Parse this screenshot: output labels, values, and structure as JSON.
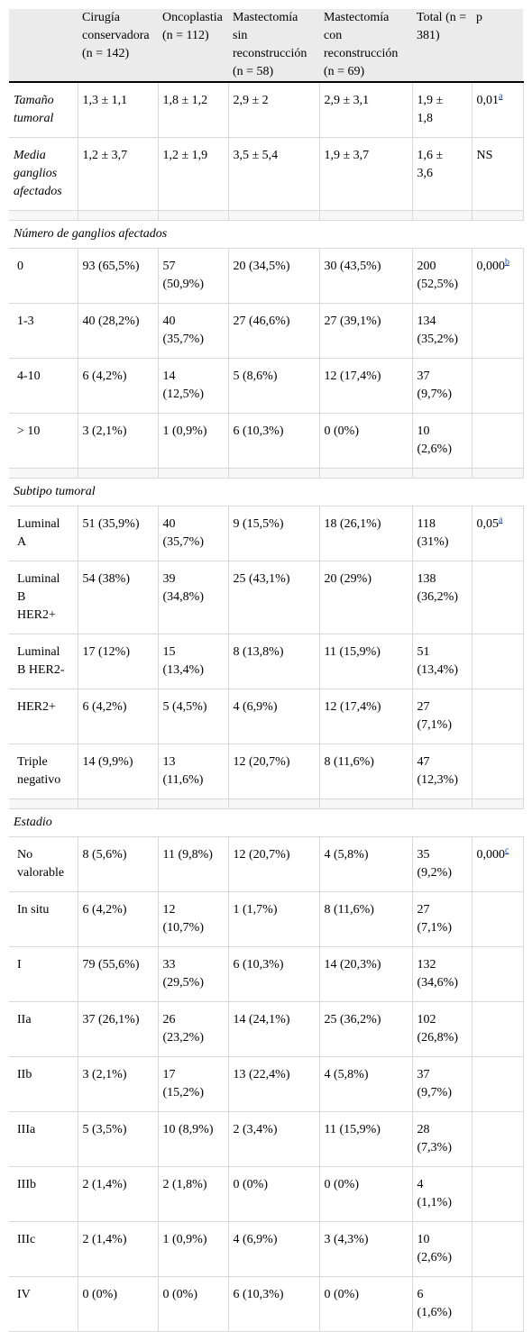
{
  "header": {
    "col0": "",
    "col1": [
      "Cirugía",
      "conservadora",
      "(n = 142)"
    ],
    "col2": [
      "Oncoplastia",
      "(n = 112)"
    ],
    "col3": [
      "Mastectomía",
      "sin",
      "reconstrucción",
      "(n = 58)"
    ],
    "col4": [
      "Mastectomía",
      "con",
      "reconstrucción",
      "(n = 69)"
    ],
    "col5": [
      "Total (n =",
      "381)"
    ],
    "col6": [
      "p"
    ]
  },
  "top_rows": [
    {
      "label": [
        "Tamaño",
        "tumoral"
      ],
      "c1": "1,3 ± 1,1",
      "c2": "1,8 ± 1,2",
      "c3": "2,9 ± 2",
      "c4": "2,9 ± 3,1",
      "c5": [
        "1,9 ±",
        "1,8"
      ],
      "p": "0,01",
      "p_note": "a"
    },
    {
      "label": [
        "Media",
        "ganglios",
        "afectados"
      ],
      "c1": "1,2 ± 3,7",
      "c2": "1,2 ± 1,9",
      "c3": "3,5 ± 5,4",
      "c4": "1,9 ± 3,7",
      "c5": [
        "1,6 ±",
        "3,6"
      ],
      "p": "NS",
      "p_note": ""
    }
  ],
  "sections": [
    {
      "title": "Número de ganglios afectados",
      "rows": [
        {
          "label": [
            "0"
          ],
          "c1": "93 (65,5%)",
          "c2": [
            "57",
            "(50,9%)"
          ],
          "c3": "20 (34,5%)",
          "c4": "30 (43,5%)",
          "c5": [
            "200",
            "(52,5%)"
          ],
          "p": "0,000",
          "p_note": "b"
        },
        {
          "label": [
            "1-3"
          ],
          "c1": "40 (28,2%)",
          "c2": [
            "40",
            "(35,7%)"
          ],
          "c3": "27 (46,6%)",
          "c4": "27 (39,1%)",
          "c5": [
            "134",
            "(35,2%)"
          ],
          "p": "",
          "p_note": ""
        },
        {
          "label": [
            "4-10"
          ],
          "c1": "6 (4,2%)",
          "c2": [
            "14",
            "(12,5%)"
          ],
          "c3": "5 (8,6%)",
          "c4": "12 (17,4%)",
          "c5": [
            "37",
            "(9,7%)"
          ],
          "p": "",
          "p_note": ""
        },
        {
          "label": [
            "> 10"
          ],
          "c1": "3 (2,1%)",
          "c2": [
            "1 (0,9%)"
          ],
          "c3": "6 (10,3%)",
          "c4": "0 (0%)",
          "c5": [
            "10",
            "(2,6%)"
          ],
          "p": "",
          "p_note": ""
        }
      ]
    },
    {
      "title": "Subtipo tumoral",
      "rows": [
        {
          "label": [
            "Luminal",
            "A"
          ],
          "c1": "51 (35,9%)",
          "c2": [
            "40",
            "(35,7%)"
          ],
          "c3": "9 (15,5%)",
          "c4": "18 (26,1%)",
          "c5": [
            "118",
            "(31%)"
          ],
          "p": "0,05",
          "p_note": "a"
        },
        {
          "label": [
            "Luminal",
            "B",
            "HER2+"
          ],
          "c1": "54 (38%)",
          "c2": [
            "39",
            "(34,8%)"
          ],
          "c3": "25 (43,1%)",
          "c4": "20 (29%)",
          "c5": [
            "138",
            "(36,2%)"
          ],
          "p": "",
          "p_note": ""
        },
        {
          "label": [
            "Luminal",
            "B HER2-"
          ],
          "c1": "17 (12%)",
          "c2": [
            "15",
            "(13,4%)"
          ],
          "c3": "8 (13,8%)",
          "c4": "11 (15,9%)",
          "c5": [
            "51",
            "(13,4%)"
          ],
          "p": "",
          "p_note": ""
        },
        {
          "label": [
            "HER2+"
          ],
          "c1": "6 (4,2%)",
          "c2": [
            "5 (4,5%)"
          ],
          "c3": "4 (6,9%)",
          "c4": "12 (17,4%)",
          "c5": [
            "27",
            "(7,1%)"
          ],
          "p": "",
          "p_note": ""
        },
        {
          "label": [
            "Triple",
            "negativo"
          ],
          "c1": "14 (9,9%)",
          "c2": [
            "13",
            "(11,6%)"
          ],
          "c3": "12 (20,7%)",
          "c4": "8 (11,6%)",
          "c5": [
            "47",
            "(12,3%)"
          ],
          "p": "",
          "p_note": ""
        }
      ]
    },
    {
      "title": "Estadio",
      "rows": [
        {
          "label": [
            "No",
            "valorable"
          ],
          "c1": "8 (5,6%)",
          "c2": [
            "11 (9,8%)"
          ],
          "c3": "12 (20,7%)",
          "c4": "4 (5,8%)",
          "c5": [
            "35",
            "(9,2%)"
          ],
          "p": "0,000",
          "p_note": "c"
        },
        {
          "label": [
            "In situ"
          ],
          "c1": "6 (4,2%)",
          "c2": [
            "12",
            "(10,7%)"
          ],
          "c3": "1 (1,7%)",
          "c4": "8 (11,6%)",
          "c5": [
            "27",
            "(7,1%)"
          ],
          "p": "",
          "p_note": ""
        },
        {
          "label": [
            "I"
          ],
          "c1": "79 (55,6%)",
          "c2": [
            "33",
            "(29,5%)"
          ],
          "c3": "6 (10,3%)",
          "c4": "14 (20,3%)",
          "c5": [
            "132",
            "(34,6%)"
          ],
          "p": "",
          "p_note": ""
        },
        {
          "label": [
            "IIa"
          ],
          "c1": "37 (26,1%)",
          "c2": [
            "26",
            "(23,2%)"
          ],
          "c3": "14 (24,1%)",
          "c4": "25 (36,2%)",
          "c5": [
            "102",
            "(26,8%)"
          ],
          "p": "",
          "p_note": ""
        },
        {
          "label": [
            "IIb"
          ],
          "c1": "3 (2,1%)",
          "c2": [
            "17",
            "(15,2%)"
          ],
          "c3": "13 (22,4%)",
          "c4": "4 (5,8%)",
          "c5": [
            "37",
            "(9,7%)"
          ],
          "p": "",
          "p_note": ""
        },
        {
          "label": [
            "IIIa"
          ],
          "c1": "5 (3,5%)",
          "c2": [
            "10 (8,9%)"
          ],
          "c3": "2 (3,4%)",
          "c4": "11 (15,9%)",
          "c5": [
            "28",
            "(7,3%)"
          ],
          "p": "",
          "p_note": ""
        },
        {
          "label": [
            "IIIb"
          ],
          "c1": "2 (1,4%)",
          "c2": [
            "2 (1,8%)"
          ],
          "c3": "0 (0%)",
          "c4": "0 (0%)",
          "c5": [
            "4",
            "(1,1%)"
          ],
          "p": "",
          "p_note": ""
        },
        {
          "label": [
            "IIIc"
          ],
          "c1": "2 (1,4%)",
          "c2": [
            "1 (0,9%)"
          ],
          "c3": "4 (6,9%)",
          "c4": "3 (4,3%)",
          "c5": [
            "10",
            "(2,6%)"
          ],
          "p": "",
          "p_note": ""
        },
        {
          "label": [
            "IV"
          ],
          "c1": "0 (0%)",
          "c2": [
            "0 (0%)"
          ],
          "c3": "6 (10,3%)",
          "c4": "0 (0%)",
          "c5": [
            "6",
            "(1,6%)"
          ],
          "p": "",
          "p_note": ""
        }
      ]
    }
  ]
}
